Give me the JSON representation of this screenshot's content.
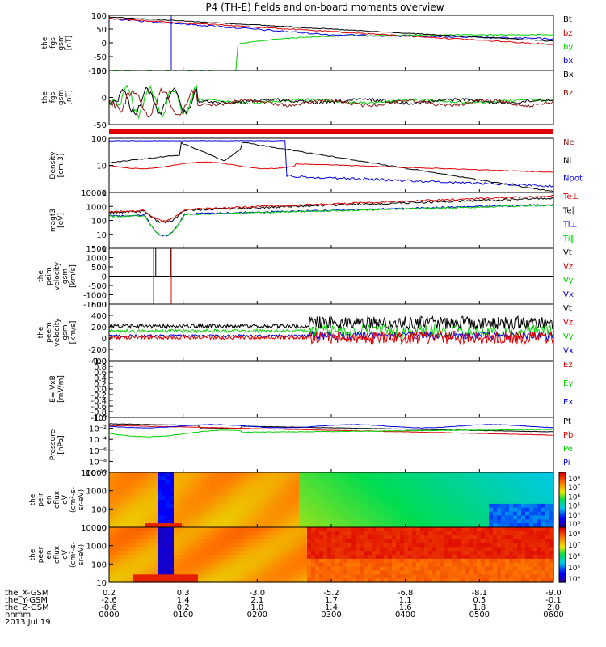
{
  "title": "P4 (TH-E) fields and on-board moments overview",
  "colors": {
    "black": "#000000",
    "red": "#e00000",
    "green": "#00d000",
    "blue": "#0000e0",
    "brown": "#8b1a1a"
  },
  "chart_data": [
    {
      "type": "line",
      "ylabel_lines": [
        "the",
        "fgs",
        "gsm",
        "[nT]"
      ],
      "ylim": [
        -100,
        100
      ],
      "yticks": [
        "100",
        "50",
        "0",
        "-50",
        "-100"
      ],
      "legend": [
        "Bt",
        "bz",
        "by",
        "bx"
      ],
      "legend_colors": [
        "black",
        "red",
        "green",
        "blue"
      ]
    },
    {
      "type": "line",
      "ylabel_lines": [
        "the",
        "fgs",
        "gsm",
        "[nT]"
      ],
      "ylim": [
        -75,
        25
      ],
      "yticks": [
        "50",
        "0",
        "-50"
      ],
      "legend": [
        "Bx",
        "Bz"
      ],
      "legend_colors": [
        "black",
        "brown"
      ]
    },
    {
      "type": "line",
      "ylabel_lines": [
        "Density",
        "[cm-3]"
      ],
      "scale": "log",
      "yticks": [
        "100",
        "10",
        "1"
      ],
      "legend": [
        "Ne",
        "Ni",
        "Npot"
      ],
      "legend_colors": [
        "brown",
        "black",
        "blue"
      ]
    },
    {
      "type": "line",
      "ylabel_lines": [
        "magt3",
        "[eV]"
      ],
      "scale": "log",
      "yticks": [
        "10000",
        "1000",
        "100",
        "10",
        "1"
      ],
      "legend": [
        "Te⊥",
        "Te∥",
        "Ti⊥",
        "Ti∥"
      ],
      "legend_colors": [
        "red",
        "black",
        "blue",
        "green"
      ]
    },
    {
      "type": "line",
      "ylabel_lines": [
        "the",
        "peim",
        "velocity",
        "gsm",
        "[km/s]"
      ],
      "ylim": [
        -1500,
        1500
      ],
      "yticks": [
        "1500",
        "1000",
        "500",
        "0",
        "-500",
        "-1000",
        "-1500"
      ],
      "legend": [
        "Vt",
        "Vz",
        "Vy",
        "Vx"
      ],
      "legend_colors": [
        "black",
        "red",
        "green",
        "blue"
      ]
    },
    {
      "type": "line",
      "ylabel_lines": [
        "the",
        "peem",
        "velocity",
        "gsm",
        "[km/s]"
      ],
      "ylim": [
        -400,
        600
      ],
      "yticks": [
        "600",
        "400",
        "200",
        "0",
        "-200",
        "-400"
      ],
      "legend": [
        "Vt",
        "Vz",
        "Vy",
        "Vx"
      ],
      "legend_colors": [
        "black",
        "red",
        "green",
        "blue"
      ]
    },
    {
      "type": "line",
      "ylabel_lines": [
        "E=-VxB",
        "[mV/m]"
      ],
      "ylim": [
        -1.0,
        1.0
      ],
      "yticks": [
        "1.0",
        "0.8",
        "0.6",
        "0.4",
        "0.2",
        "0.0",
        "-0.2",
        "-0.4",
        "-0.6",
        "-0.8",
        "-1.0"
      ],
      "legend": [
        "Ez",
        "Ey",
        "Ex"
      ],
      "legend_colors": [
        "red",
        "green",
        "blue"
      ]
    },
    {
      "type": "line",
      "ylabel_lines": [
        "Pressure",
        "[nPa]"
      ],
      "scale": "log",
      "yticks": [
        "10⁰",
        "10⁻²",
        "10⁻⁴",
        "10⁻⁶",
        "10⁻⁸",
        "10⁻¹⁰"
      ],
      "legend": [
        "Pt",
        "Pb",
        "Pe",
        "Pi"
      ],
      "legend_colors": [
        "black",
        "red",
        "green",
        "blue"
      ]
    },
    {
      "type": "heatmap",
      "ylabel_lines": [
        "the",
        "peir",
        "en",
        "eflux",
        "eV",
        "(cm²-s-",
        "sr-eV)"
      ],
      "yticks": [
        "10000",
        "1000",
        "100",
        "10"
      ],
      "colorbar_ticks": [
        "10⁸",
        "10⁷",
        "10⁶",
        "10⁵",
        "10⁴",
        "10³"
      ]
    },
    {
      "type": "heatmap",
      "ylabel_lines": [
        "the",
        "peer",
        "en",
        "eflux",
        "eV",
        "(cm²-s-",
        "sr-eV)"
      ],
      "yticks": [
        "10000",
        "1000",
        "100",
        "10"
      ],
      "colorbar_ticks": [
        "10⁸",
        "10⁷",
        "10⁶",
        "10⁵",
        "10⁴"
      ]
    }
  ],
  "xaxis": {
    "row_labels": [
      "the_X-GSM",
      "the_Y-GSM",
      "the_Z-GSM",
      "hhmm",
      "2013 Jul 19"
    ],
    "x_gsm": [
      "0.2",
      "0.3",
      "-3.0",
      "-5.2",
      "-6.8",
      "-8.1",
      "-9.0"
    ],
    "y_gsm": [
      "-2.6",
      "1.4",
      "2.1",
      "1.7",
      "1.1",
      "0.5",
      "-0.1"
    ],
    "z_gsm": [
      "-0.6",
      "0.2",
      "1.0",
      "1.4",
      "1.6",
      "1.8",
      "2.0"
    ],
    "hhmm": [
      "0000",
      "0100",
      "0200",
      "0300",
      "0400",
      "0500",
      "0600"
    ]
  }
}
